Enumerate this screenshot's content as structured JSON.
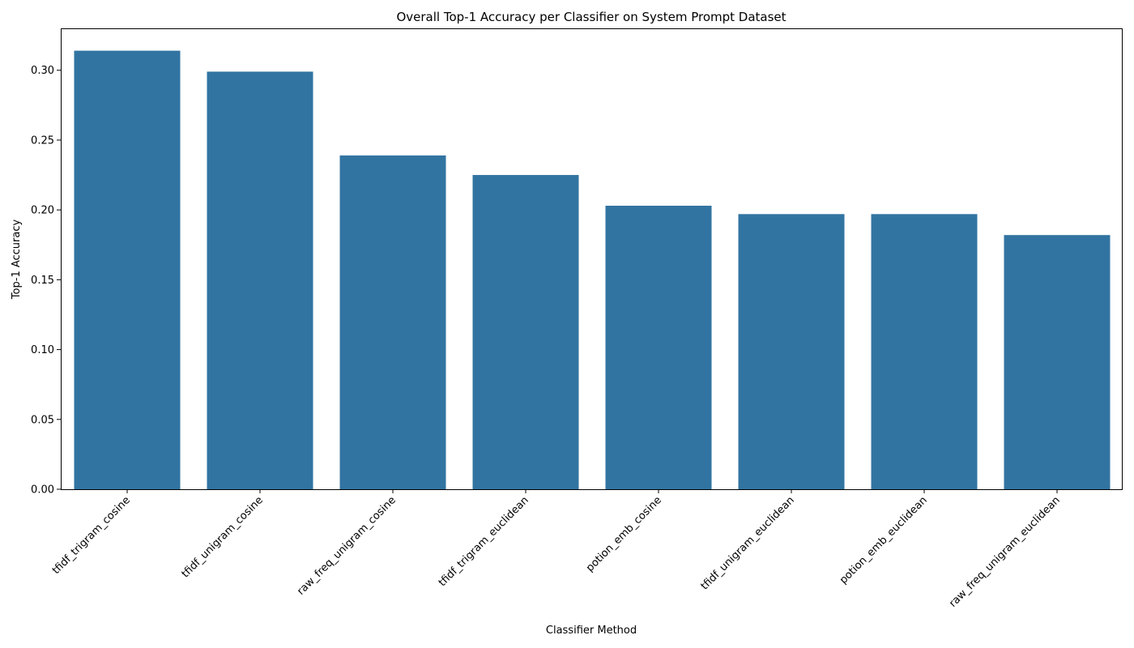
{
  "chart_data": {
    "type": "bar",
    "title": "Overall Top-1 Accuracy per Classifier on System Prompt Dataset",
    "xlabel": "Classifier Method",
    "ylabel": "Top-1 Accuracy",
    "categories": [
      "tfidf_trigram_cosine",
      "tfidf_unigram_cosine",
      "raw_freq_unigram_cosine",
      "tfidf_trigram_euclidean",
      "potion_emb_cosine",
      "tfidf_unigram_euclidean",
      "potion_emb_euclidean",
      "raw_freq_unigram_euclidean"
    ],
    "values": [
      0.314,
      0.299,
      0.239,
      0.225,
      0.203,
      0.197,
      0.197,
      0.182
    ],
    "ylim": [
      0,
      0.33
    ],
    "yticks": [
      "0.00",
      "0.05",
      "0.10",
      "0.15",
      "0.20",
      "0.25",
      "0.30"
    ],
    "bar_color": "#3274a1",
    "grid": false,
    "legend": "none"
  }
}
